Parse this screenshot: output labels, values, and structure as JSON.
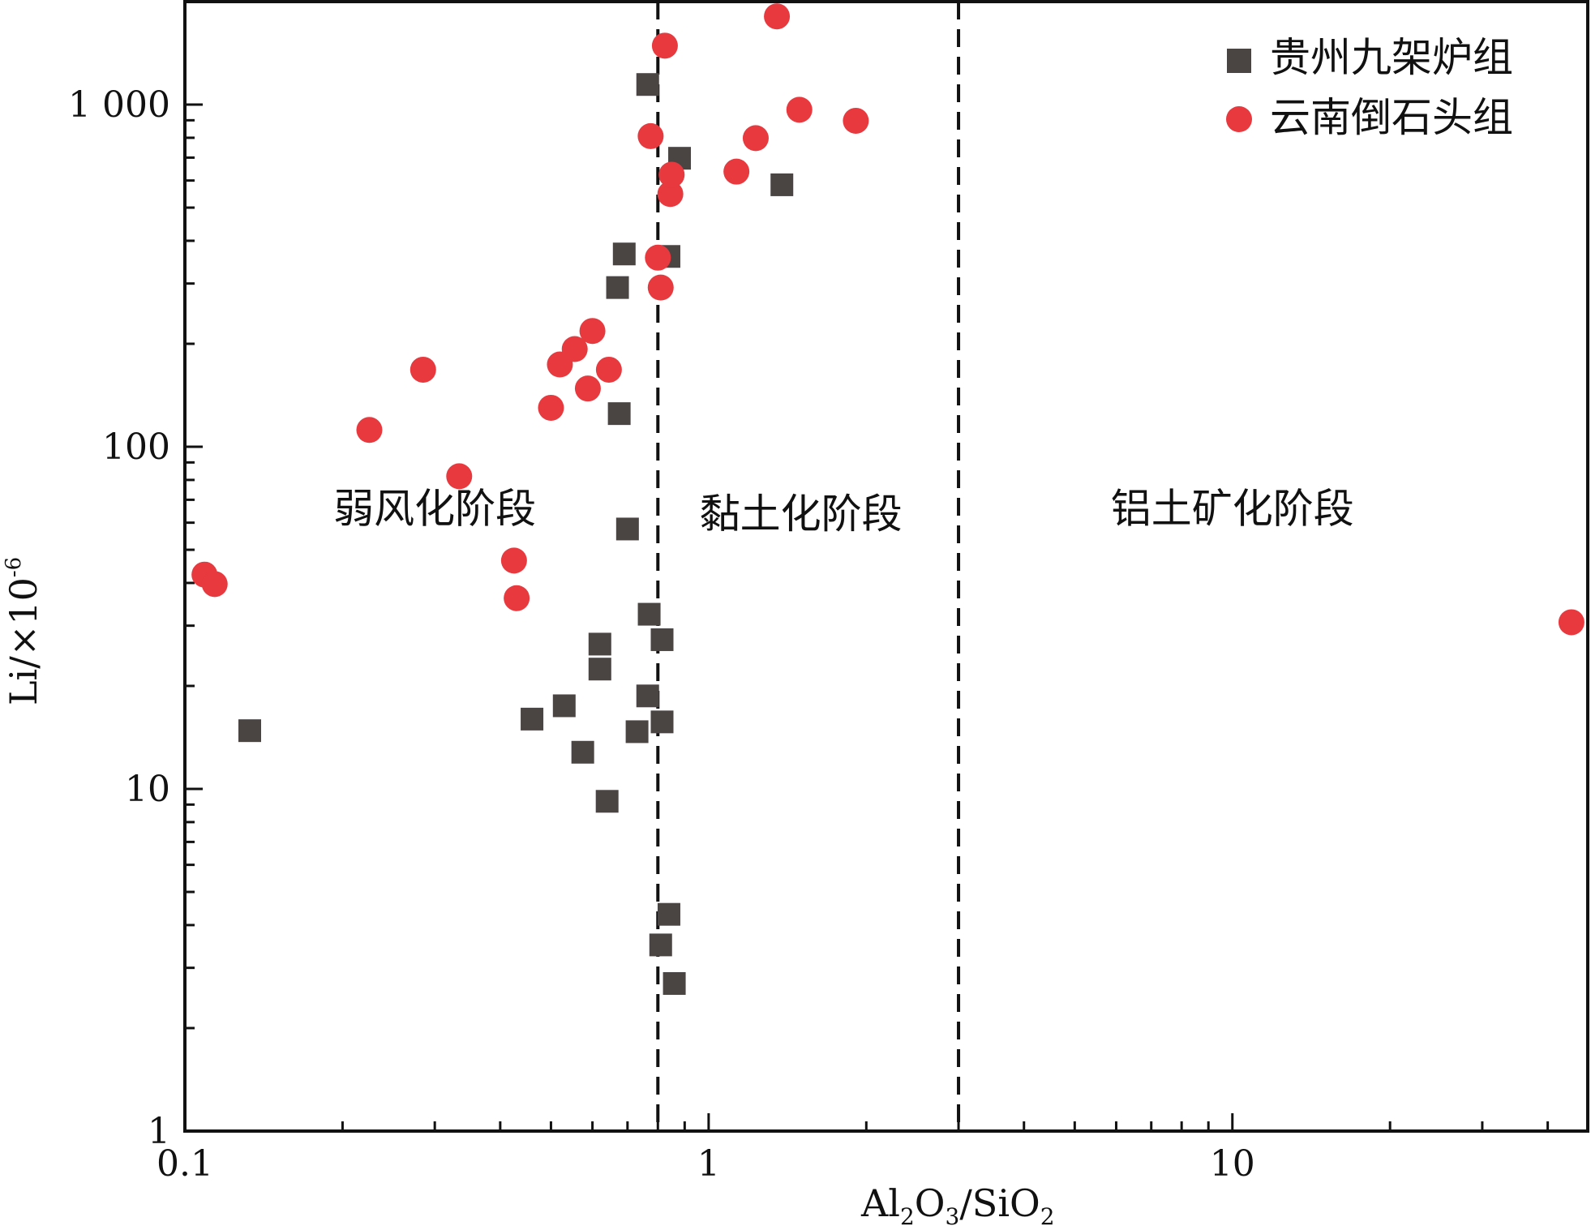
{
  "chart_data": {
    "type": "scatter",
    "title": "",
    "xlabel": "Al2O3/SiO2",
    "xlabel_parts": {
      "a": "Al",
      "s1": "2",
      "b": "O",
      "s2": "3",
      "c": "/SiO",
      "s3": "2"
    },
    "ylabel": "Li/×10",
    "ylabel_sup": "-6",
    "xscale": "log",
    "yscale": "log",
    "xlim": [
      0.1,
      47.7
    ],
    "ylim": [
      1,
      2000
    ],
    "xticks": [
      {
        "v": 0.1,
        "label": "0.1"
      },
      {
        "v": 1,
        "label": "1"
      },
      {
        "v": 10,
        "label": "10"
      }
    ],
    "yticks": [
      {
        "v": 1,
        "label": "1"
      },
      {
        "v": 10,
        "label": "10"
      },
      {
        "v": 100,
        "label": "100"
      },
      {
        "v": 1000,
        "label": "1 000"
      }
    ],
    "grid": false,
    "legend_position": "top-right",
    "boundaries": [
      0.8,
      3
    ],
    "regions": [
      {
        "label": "弱风化阶段",
        "x": 0.3,
        "y": 60
      },
      {
        "label": "黏土化阶段",
        "x": 1.5,
        "y": 58
      },
      {
        "label": "铝土矿化阶段",
        "x": 10,
        "y": 60
      }
    ],
    "series": [
      {
        "name": "贵州九架炉组",
        "marker": "square",
        "color": "#4a4443",
        "points": [
          [
            0.133,
            14.8
          ],
          [
            0.46,
            16
          ],
          [
            0.53,
            17.5
          ],
          [
            0.575,
            12.8
          ],
          [
            0.62,
            26.5
          ],
          [
            0.62,
            22.4
          ],
          [
            0.64,
            9.2
          ],
          [
            0.67,
            292
          ],
          [
            0.69,
            366
          ],
          [
            0.675,
            125
          ],
          [
            0.7,
            57.5
          ],
          [
            0.73,
            14.7
          ],
          [
            0.765,
            1145
          ],
          [
            0.765,
            18.7
          ],
          [
            0.77,
            32.4
          ],
          [
            0.815,
            27.3
          ],
          [
            0.815,
            15.7
          ],
          [
            0.84,
            360
          ],
          [
            0.88,
            697
          ],
          [
            1.38,
            583
          ],
          [
            0.84,
            4.3
          ],
          [
            0.81,
            3.5
          ],
          [
            0.86,
            2.7
          ]
        ]
      },
      {
        "name": "云南倒石头组",
        "marker": "circle",
        "color": "#e8393f",
        "points": [
          [
            0.109,
            42.3
          ],
          [
            0.114,
            39.7
          ],
          [
            0.225,
            112
          ],
          [
            0.285,
            168
          ],
          [
            0.334,
            82
          ],
          [
            0.425,
            46.5
          ],
          [
            0.43,
            36.1
          ],
          [
            0.5,
            130
          ],
          [
            0.52,
            174
          ],
          [
            0.555,
            193
          ],
          [
            0.588,
            148
          ],
          [
            0.6,
            218
          ],
          [
            0.645,
            168
          ],
          [
            0.775,
            809
          ],
          [
            0.8,
            357
          ],
          [
            0.81,
            292
          ],
          [
            0.825,
            1487
          ],
          [
            0.845,
            548
          ],
          [
            0.85,
            624
          ],
          [
            1.13,
            637
          ],
          [
            1.23,
            798
          ],
          [
            1.35,
            1811
          ],
          [
            1.49,
            966
          ],
          [
            1.91,
            897
          ],
          [
            44.4,
            30.7
          ]
        ]
      }
    ]
  }
}
